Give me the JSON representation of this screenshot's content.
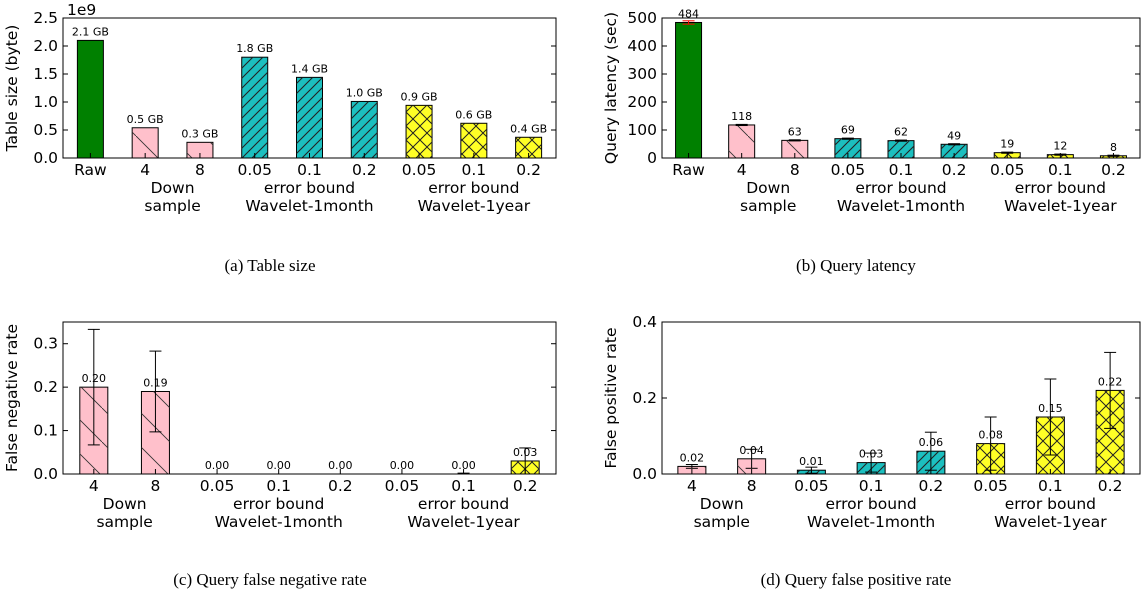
{
  "colors": {
    "raw": "#008000",
    "downsample": "#ffc0cb",
    "wavelet_month": "#1cbfbf",
    "wavelet_year": "#ffff26",
    "error_bar": "#000000",
    "error_bar_raw": "#ff0000"
  },
  "chart_data": [
    {
      "type": "bar",
      "caption": "(a)  Table size",
      "ylabel": "Table size (byte)",
      "xlabel": "",
      "offset_text": "1e9",
      "ylim": [
        0,
        2.5
      ],
      "yticks": [
        "0.0",
        "0.5",
        "1.0",
        "1.5",
        "2.0",
        "2.5"
      ],
      "categories": [
        "Raw",
        "4",
        "8",
        "0.05",
        "0.1",
        "0.2",
        "0.05",
        "0.1",
        "0.2"
      ],
      "groups": [
        "raw",
        "downsample",
        "downsample",
        "wavelet_month",
        "wavelet_month",
        "wavelet_month",
        "wavelet_year",
        "wavelet_year",
        "wavelet_year"
      ],
      "values": [
        2.1,
        0.54,
        0.28,
        1.8,
        1.44,
        1.01,
        0.94,
        0.62,
        0.37
      ],
      "data_labels": [
        "2.1 GB",
        "0.5 GB",
        "0.3 GB",
        "1.8 GB",
        "1.4 GB",
        "1.0 GB",
        "0.9 GB",
        "0.6 GB",
        "0.4 GB"
      ],
      "error": null,
      "group_labels": [
        {
          "lines": [
            "Down",
            "sample"
          ]
        },
        {
          "lines": [
            "error bound",
            "Wavelet-1month"
          ]
        },
        {
          "lines": [
            "error bound",
            "Wavelet-1year"
          ]
        }
      ]
    },
    {
      "type": "bar",
      "caption": "(b)  Query latency",
      "ylabel": "Query latency (sec)",
      "xlabel": "",
      "ylim": [
        0,
        500
      ],
      "yticks": [
        "0",
        "100",
        "200",
        "300",
        "400",
        "500"
      ],
      "categories": [
        "Raw",
        "4",
        "8",
        "0.05",
        "0.1",
        "0.2",
        "0.05",
        "0.1",
        "0.2"
      ],
      "groups": [
        "raw",
        "downsample",
        "downsample",
        "wavelet_month",
        "wavelet_month",
        "wavelet_month",
        "wavelet_year",
        "wavelet_year",
        "wavelet_year"
      ],
      "values": [
        484,
        118,
        63,
        69,
        62,
        49,
        19,
        12,
        8
      ],
      "data_labels": [
        "484",
        "118",
        "63",
        "69",
        "62",
        "49",
        "19",
        "12",
        "8"
      ],
      "error": [
        6,
        2,
        2,
        2,
        2,
        2,
        2,
        2,
        2
      ],
      "group_labels": [
        {
          "lines": [
            "Down",
            "sample"
          ]
        },
        {
          "lines": [
            "error bound",
            "Wavelet-1month"
          ]
        },
        {
          "lines": [
            "error bound",
            "Wavelet-1year"
          ]
        }
      ]
    },
    {
      "type": "bar",
      "caption": "(c)  Query false negative rate",
      "ylabel": "False negative rate",
      "xlabel": "",
      "ylim": [
        0,
        0.35
      ],
      "yticks": [
        "0.0",
        "0.1",
        "0.2",
        "0.3"
      ],
      "categories": [
        "4",
        "8",
        "0.05",
        "0.1",
        "0.2",
        "0.05",
        "0.1",
        "0.2"
      ],
      "groups": [
        "downsample",
        "downsample",
        "wavelet_month",
        "wavelet_month",
        "wavelet_month",
        "wavelet_year",
        "wavelet_year",
        "wavelet_year"
      ],
      "values": [
        0.2,
        0.19,
        0.0,
        0.0,
        0.0,
        0.0,
        0.0,
        0.03
      ],
      "data_labels": [
        "0.20",
        "0.19",
        "0.00",
        "0.00",
        "0.00",
        "0.00",
        "0.00",
        "0.03"
      ],
      "error": [
        0.133,
        0.093,
        0,
        0,
        0,
        0,
        0.002,
        0.03
      ],
      "group_labels": [
        {
          "lines": [
            "Down",
            "sample"
          ]
        },
        {
          "lines": [
            "error bound",
            "Wavelet-1month"
          ]
        },
        {
          "lines": [
            "error bound",
            "Wavelet-1year"
          ]
        }
      ]
    },
    {
      "type": "bar",
      "caption": "(d)  Query false positive rate",
      "ylabel": "False positive rate",
      "xlabel": "",
      "ylim": [
        0,
        0.4
      ],
      "yticks": [
        "0.0",
        "0.2",
        "0.4"
      ],
      "categories": [
        "4",
        "8",
        "0.05",
        "0.1",
        "0.2",
        "0.05",
        "0.1",
        "0.2"
      ],
      "groups": [
        "downsample",
        "downsample",
        "wavelet_month",
        "wavelet_month",
        "wavelet_month",
        "wavelet_year",
        "wavelet_year",
        "wavelet_year"
      ],
      "values": [
        0.02,
        0.04,
        0.01,
        0.03,
        0.06,
        0.08,
        0.15,
        0.22
      ],
      "data_labels": [
        "0.02",
        "0.04",
        "0.01",
        "0.03",
        "0.06",
        "0.08",
        "0.15",
        "0.22"
      ],
      "error": [
        0.005,
        0.025,
        0.008,
        0.025,
        0.05,
        0.07,
        0.1,
        0.1
      ],
      "group_labels": [
        {
          "lines": [
            "Down",
            "sample"
          ]
        },
        {
          "lines": [
            "error bound",
            "Wavelet-1month"
          ]
        },
        {
          "lines": [
            "error bound",
            "Wavelet-1year"
          ]
        }
      ]
    }
  ]
}
